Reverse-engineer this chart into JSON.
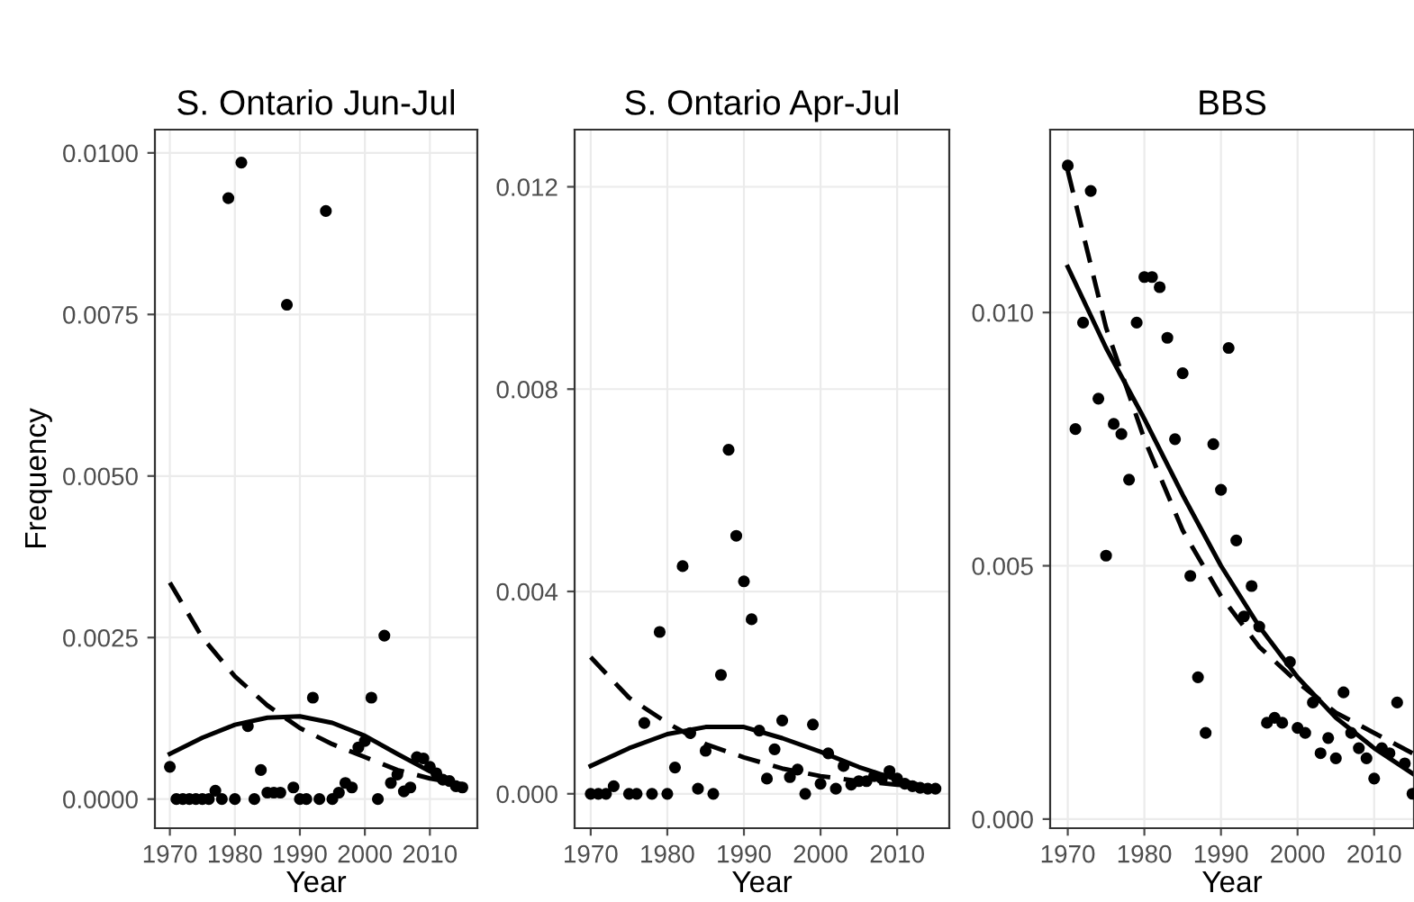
{
  "chart_data": [
    {
      "type": "scatter",
      "title": "S. Ontario Jun-Jul",
      "xlabel": "Year",
      "ylabel": "Frequency",
      "grid": true,
      "marker": "circle",
      "xlim": [
        1967.7,
        2017.3
      ],
      "xticks": [
        1970,
        1980,
        1990,
        2000,
        2010
      ],
      "ylim": [
        -0.00045,
        0.01036
      ],
      "yticks": [
        {
          "value": 0,
          "label": "0.0000"
        },
        {
          "value": 0.0025,
          "label": "0.0025"
        },
        {
          "value": 0.005,
          "label": "0.0050"
        },
        {
          "value": 0.0075,
          "label": "0.0075"
        },
        {
          "value": 0.01,
          "label": "0.0100"
        }
      ],
      "series": [
        {
          "type": "scatter",
          "color": "#000000",
          "x": [
            1970,
            1971,
            1972,
            1973,
            1974,
            1975,
            1976,
            1977,
            1978,
            1979,
            1980,
            1981,
            1982,
            1983,
            1984,
            1985,
            1986,
            1987,
            1988,
            1989,
            1990,
            1991,
            1992,
            1993,
            1994,
            1995,
            1996,
            1997,
            1998,
            1999,
            2000,
            2001,
            2002,
            2003,
            2004,
            2005,
            2006,
            2007,
            2008,
            2009,
            2010,
            2011,
            2012,
            2013,
            2014,
            2015
          ],
          "values": [
            0.0005,
            0,
            0,
            0,
            0,
            0,
            0,
            0.00013,
            0,
            0.0093,
            0,
            0.00985,
            0.00113,
            0,
            0.00045,
            0.0001,
            0.0001,
            0.0001,
            0.00765,
            0.00018,
            0,
            0,
            0.00157,
            0,
            0.0091,
            0,
            0.0001,
            0.00025,
            0.00018,
            0.0008,
            0.0009,
            0.00157,
            0,
            0.00253,
            0.00025,
            0.00038,
            0.00012,
            0.00018,
            0.00065,
            0.00063,
            0.0005,
            0.0004,
            0.0003,
            0.00028,
            0.0002,
            0.00018
          ]
        },
        {
          "type": "line",
          "color": "#000000",
          "line_style": "solid",
          "marker": "none",
          "x": [
            1970,
            1975,
            1980,
            1985,
            1990,
            1995,
            2000,
            2005,
            2010,
            2015
          ],
          "values": [
            0.0007,
            0.00095,
            0.00115,
            0.00126,
            0.00128,
            0.00118,
            0.00098,
            0.0007,
            0.00043,
            0.0002
          ]
        },
        {
          "type": "line",
          "color": "#000000",
          "line_style": "dashed",
          "marker": "none",
          "x": [
            1970,
            1975,
            1980,
            1985,
            1990,
            1995,
            2000,
            2005,
            2010,
            2015
          ],
          "values": [
            0.00335,
            0.0025,
            0.0019,
            0.00145,
            0.0011,
            0.00085,
            0.00065,
            0.00045,
            0.00032,
            0.00023
          ]
        }
      ]
    },
    {
      "type": "scatter",
      "title": "S. Ontario Apr-Jul",
      "xlabel": "Year",
      "grid": true,
      "marker": "circle",
      "xlim": [
        1967.9,
        2016.8
      ],
      "xticks": [
        1970,
        1980,
        1990,
        2000,
        2010
      ],
      "ylim": [
        -0.00068,
        0.01313
      ],
      "yticks": [
        {
          "value": 0,
          "label": "0.000"
        },
        {
          "value": 0.004,
          "label": "0.004"
        },
        {
          "value": 0.008,
          "label": "0.008"
        },
        {
          "value": 0.012,
          "label": "0.012"
        }
      ],
      "series": [
        {
          "type": "scatter",
          "color": "#000000",
          "x": [
            1970,
            1971,
            1972,
            1973,
            1975,
            1976,
            1977,
            1978,
            1979,
            1980,
            1981,
            1982,
            1983,
            1984,
            1985,
            1986,
            1987,
            1988,
            1989,
            1990,
            1991,
            1992,
            1993,
            1994,
            1995,
            1996,
            1997,
            1998,
            1999,
            2000,
            2001,
            2002,
            2003,
            2004,
            2005,
            2006,
            2007,
            2008,
            2009,
            2010,
            2011,
            2012,
            2013,
            2014,
            2015
          ],
          "values": [
            0,
            0,
            0,
            0.00015,
            0,
            0,
            0.0014,
            0,
            0.0032,
            0,
            0.00052,
            0.0045,
            0.0012,
            0.0001,
            0.00085,
            0,
            0.00235,
            0.0068,
            0.0051,
            0.0042,
            0.00345,
            0.00125,
            0.0003,
            0.00088,
            0.00145,
            0.00033,
            0.00048,
            0,
            0.00137,
            0.0002,
            0.0008,
            0.0001,
            0.00055,
            0.00018,
            0.00025,
            0.00025,
            0.00035,
            0.0003,
            0.00045,
            0.0003,
            0.0002,
            0.00015,
            0.00012,
            0.0001,
            0.0001
          ]
        },
        {
          "type": "line",
          "color": "#000000",
          "line_style": "solid",
          "marker": "none",
          "x": [
            1970,
            1975,
            1980,
            1985,
            1990,
            1995,
            2000,
            2005,
            2010,
            2015
          ],
          "values": [
            0.00055,
            0.0009,
            0.00118,
            0.00132,
            0.00132,
            0.0011,
            0.00083,
            0.00053,
            0.00028,
            0.0001
          ]
        },
        {
          "type": "line",
          "color": "#000000",
          "line_style": "dashed",
          "marker": "none",
          "x": [
            1970,
            1975,
            1980,
            1985,
            1990,
            1995,
            2000,
            2005,
            2010,
            2015
          ],
          "values": [
            0.0027,
            0.0019,
            0.0014,
            0.00098,
            0.00072,
            0.0005,
            0.00035,
            0.00025,
            0.00018,
            0.00012
          ]
        }
      ]
    },
    {
      "type": "scatter",
      "title": "BBS",
      "xlabel": "Year",
      "grid": true,
      "marker": "circle",
      "xlim": [
        1967.7,
        2015.2
      ],
      "xticks": [
        1970,
        1980,
        1990,
        2000,
        2010
      ],
      "ylim": [
        -0.00018,
        0.01361
      ],
      "yticks": [
        {
          "value": 0,
          "label": "0.000"
        },
        {
          "value": 0.005,
          "label": "0.005"
        },
        {
          "value": 0.01,
          "label": "0.010"
        }
      ],
      "series": [
        {
          "type": "scatter",
          "color": "#000000",
          "x": [
            1970,
            1971,
            1972,
            1973,
            1974,
            1975,
            1976,
            1977,
            1978,
            1979,
            1980,
            1981,
            1982,
            1983,
            1984,
            1985,
            1986,
            1987,
            1988,
            1989,
            1990,
            1991,
            1992,
            1993,
            1994,
            1995,
            1996,
            1997,
            1998,
            1999,
            2000,
            2001,
            2002,
            2003,
            2004,
            2005,
            2006,
            2007,
            2008,
            2009,
            2010,
            2011,
            2012,
            2013,
            2014,
            2015
          ],
          "values": [
            0.0129,
            0.0077,
            0.0098,
            0.0124,
            0.0083,
            0.0052,
            0.0078,
            0.0076,
            0.0067,
            0.0098,
            0.0107,
            0.0107,
            0.0105,
            0.0095,
            0.0075,
            0.0088,
            0.0048,
            0.0028,
            0.0017,
            0.0074,
            0.0065,
            0.0093,
            0.0055,
            0.004,
            0.0046,
            0.0038,
            0.0019,
            0.002,
            0.0019,
            0.0031,
            0.0018,
            0.0017,
            0.0023,
            0.0013,
            0.0016,
            0.0012,
            0.0025,
            0.0017,
            0.0014,
            0.0012,
            0.0008,
            0.0014,
            0.0013,
            0.0023,
            0.0011,
            0.0005
          ]
        },
        {
          "type": "line",
          "color": "#000000",
          "line_style": "solid",
          "marker": "none",
          "x": [
            1970,
            1975,
            1980,
            1985,
            1990,
            1995,
            2000,
            2005,
            2010,
            2015
          ],
          "values": [
            0.0109,
            0.0093,
            0.0079,
            0.0064,
            0.005,
            0.0038,
            0.0028,
            0.002,
            0.0014,
            0.0009
          ]
        },
        {
          "type": "line",
          "color": "#000000",
          "line_style": "dashed",
          "marker": "none",
          "x": [
            1970,
            1975,
            1980,
            1985,
            1990,
            1995,
            2000,
            2005,
            2010,
            2015
          ],
          "values": [
            0.0128,
            0.0097,
            0.0075,
            0.0057,
            0.0044,
            0.0034,
            0.0027,
            0.0021,
            0.0017,
            0.0013
          ]
        }
      ]
    }
  ]
}
